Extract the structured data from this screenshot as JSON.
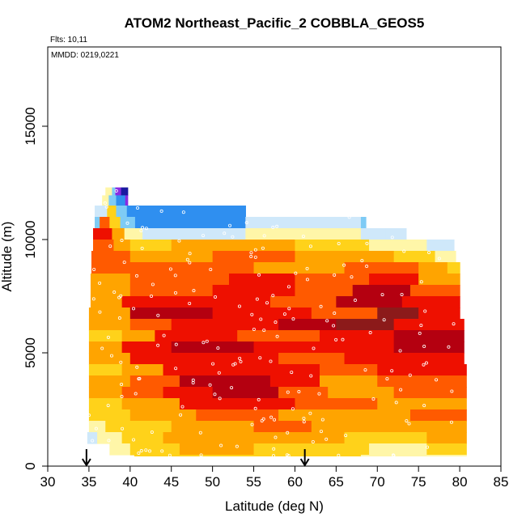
{
  "chart_data": {
    "type": "heatmap",
    "title": "ATOM2 Northeast_Pacific_2 COBBLA_GEOS5",
    "annotations": {
      "flights": "Flts: 10,11",
      "dates": "MMDD: 0219,0221"
    },
    "xlabel": "Latitude (deg N)",
    "ylabel": "Altitude (m)",
    "xlim": [
      30,
      85
    ],
    "ylim": [
      0,
      18500
    ],
    "xticks": [
      "30",
      "35",
      "40",
      "45",
      "50",
      "55",
      "60",
      "65",
      "70",
      "75",
      "80",
      "85"
    ],
    "yticks": [
      "0",
      "5000",
      "10000",
      "15000"
    ],
    "grid": false,
    "colors": {
      "pale_blue": "#cfe8fa",
      "light_blue": "#7ecbf5",
      "blue": "#2f8ff0",
      "purple": "#8a2be2",
      "dark_blue": "#1a1aa0",
      "light_yellow": "#fff6a8",
      "yellow": "#ffd21a",
      "orange": "#ffa400",
      "red_orange": "#ff5a00",
      "red": "#ee1000",
      "dark_red": "#b40010",
      "brown_red": "#8c1a1a"
    },
    "bands": [
      {
        "alt_bottom": 11950,
        "alt_top": 12300,
        "segments": [
          [
            37.0,
            37.8,
            "light_yellow"
          ],
          [
            37.8,
            38.2,
            "light_blue"
          ],
          [
            38.2,
            38.9,
            "purple"
          ],
          [
            38.9,
            39.7,
            "dark_blue"
          ]
        ]
      },
      {
        "alt_bottom": 11500,
        "alt_top": 11950,
        "segments": [
          [
            36.6,
            37.4,
            "light_yellow"
          ],
          [
            37.4,
            38.3,
            "light_blue"
          ],
          [
            38.3,
            39.4,
            "blue"
          ],
          [
            39.4,
            39.7,
            "purple"
          ]
        ]
      },
      {
        "alt_bottom": 11000,
        "alt_top": 11500,
        "segments": [
          [
            35.7,
            37.2,
            "pale_blue"
          ],
          [
            37.2,
            38.3,
            "yellow"
          ],
          [
            38.3,
            39.6,
            "light_blue"
          ],
          [
            39.6,
            54.0,
            "blue"
          ]
        ]
      },
      {
        "alt_bottom": 10500,
        "alt_top": 11000,
        "segments": [
          [
            35.7,
            36.3,
            "light_blue"
          ],
          [
            36.3,
            37.5,
            "red_orange"
          ],
          [
            37.5,
            38.8,
            "yellow"
          ],
          [
            38.8,
            40.6,
            "light_blue"
          ],
          [
            40.6,
            54.0,
            "blue"
          ],
          [
            54.0,
            68.0,
            "pale_blue"
          ],
          [
            68.0,
            68.6,
            "light_blue"
          ]
        ]
      },
      {
        "alt_bottom": 10000,
        "alt_top": 10500,
        "segments": [
          [
            35.5,
            37.8,
            "red"
          ],
          [
            37.8,
            39.3,
            "orange"
          ],
          [
            39.3,
            41.5,
            "light_yellow"
          ],
          [
            41.5,
            46.0,
            "pale_blue"
          ],
          [
            46.0,
            54.0,
            "pale_blue"
          ],
          [
            54.0,
            68.0,
            "light_yellow"
          ],
          [
            68.0,
            71.0,
            "pale_blue"
          ],
          [
            71.0,
            73.5,
            "pale_blue"
          ]
        ]
      },
      {
        "alt_bottom": 9500,
        "alt_top": 10000,
        "segments": [
          [
            35.5,
            38.0,
            "red_orange"
          ],
          [
            38.0,
            40.0,
            "orange"
          ],
          [
            40.0,
            45.0,
            "yellow"
          ],
          [
            45.0,
            60.0,
            "orange"
          ],
          [
            60.0,
            69.0,
            "yellow"
          ],
          [
            69.0,
            76.0,
            "light_yellow"
          ],
          [
            76.0,
            79.3,
            "pale_blue"
          ]
        ]
      },
      {
        "alt_bottom": 9000,
        "alt_top": 9500,
        "segments": [
          [
            35.3,
            40.0,
            "red_orange"
          ],
          [
            40.0,
            50.0,
            "orange"
          ],
          [
            50.0,
            60.0,
            "red_orange"
          ],
          [
            60.0,
            72.0,
            "orange"
          ],
          [
            72.0,
            77.0,
            "yellow"
          ],
          [
            77.0,
            79.5,
            "light_yellow"
          ]
        ]
      },
      {
        "alt_bottom": 8500,
        "alt_top": 9000,
        "segments": [
          [
            35.3,
            42.0,
            "red_orange"
          ],
          [
            42.0,
            55.0,
            "red_orange"
          ],
          [
            55.0,
            66.0,
            "orange"
          ],
          [
            66.0,
            75.0,
            "red_orange"
          ],
          [
            75.0,
            78.5,
            "orange"
          ],
          [
            78.5,
            80.0,
            "yellow"
          ]
        ]
      },
      {
        "alt_bottom": 8000,
        "alt_top": 8500,
        "segments": [
          [
            35.2,
            40.0,
            "orange"
          ],
          [
            40.0,
            52.0,
            "red_orange"
          ],
          [
            52.0,
            60.0,
            "red"
          ],
          [
            60.0,
            69.0,
            "red_orange"
          ],
          [
            69.0,
            75.0,
            "red"
          ],
          [
            75.0,
            80.0,
            "orange"
          ]
        ]
      },
      {
        "alt_bottom": 7500,
        "alt_top": 8000,
        "segments": [
          [
            35.2,
            40.0,
            "orange"
          ],
          [
            40.0,
            50.0,
            "red_orange"
          ],
          [
            50.0,
            60.0,
            "red"
          ],
          [
            60.0,
            67.0,
            "red_orange"
          ],
          [
            67.0,
            74.0,
            "dark_red"
          ],
          [
            74.0,
            80.0,
            "red_orange"
          ]
        ]
      },
      {
        "alt_bottom": 7000,
        "alt_top": 7500,
        "segments": [
          [
            35.2,
            39.0,
            "orange"
          ],
          [
            39.0,
            47.0,
            "red"
          ],
          [
            47.0,
            57.0,
            "red"
          ],
          [
            57.0,
            65.0,
            "red_orange"
          ],
          [
            65.0,
            73.0,
            "dark_red"
          ],
          [
            73.0,
            80.0,
            "red"
          ]
        ]
      },
      {
        "alt_bottom": 6500,
        "alt_top": 7000,
        "segments": [
          [
            35.0,
            40.0,
            "orange"
          ],
          [
            40.0,
            50.0,
            "dark_red"
          ],
          [
            50.0,
            62.0,
            "red"
          ],
          [
            62.0,
            70.0,
            "red_orange"
          ],
          [
            70.0,
            75.0,
            "brown_red"
          ],
          [
            75.0,
            80.0,
            "red"
          ]
        ]
      },
      {
        "alt_bottom": 6000,
        "alt_top": 6500,
        "segments": [
          [
            35.0,
            40.0,
            "orange"
          ],
          [
            40.0,
            45.0,
            "red_orange"
          ],
          [
            45.0,
            58.0,
            "red"
          ],
          [
            58.0,
            65.0,
            "dark_red"
          ],
          [
            65.0,
            72.0,
            "brown_red"
          ],
          [
            72.0,
            80.5,
            "red"
          ]
        ]
      },
      {
        "alt_bottom": 5500,
        "alt_top": 6000,
        "segments": [
          [
            35.0,
            39.0,
            "yellow"
          ],
          [
            39.0,
            43.0,
            "orange"
          ],
          [
            43.0,
            53.0,
            "red"
          ],
          [
            53.0,
            63.0,
            "red_orange"
          ],
          [
            63.0,
            72.0,
            "red"
          ],
          [
            72.0,
            80.5,
            "dark_red"
          ]
        ]
      },
      {
        "alt_bottom": 5000,
        "alt_top": 5500,
        "segments": [
          [
            35.0,
            39.0,
            "orange"
          ],
          [
            39.0,
            45.0,
            "red"
          ],
          [
            45.0,
            55.0,
            "dark_red"
          ],
          [
            55.0,
            64.0,
            "red"
          ],
          [
            64.0,
            72.0,
            "red"
          ],
          [
            72.0,
            80.5,
            "dark_red"
          ]
        ]
      },
      {
        "alt_bottom": 4500,
        "alt_top": 5000,
        "segments": [
          [
            35.0,
            40.0,
            "orange"
          ],
          [
            40.0,
            47.0,
            "red"
          ],
          [
            47.0,
            58.0,
            "red"
          ],
          [
            58.0,
            66.0,
            "red_orange"
          ],
          [
            66.0,
            74.0,
            "red"
          ],
          [
            74.0,
            80.5,
            "red"
          ]
        ]
      },
      {
        "alt_bottom": 4000,
        "alt_top": 4500,
        "segments": [
          [
            35.0,
            39.0,
            "yellow"
          ],
          [
            39.0,
            44.0,
            "orange"
          ],
          [
            44.0,
            56.0,
            "red"
          ],
          [
            56.0,
            63.0,
            "red"
          ],
          [
            63.0,
            70.0,
            "red_orange"
          ],
          [
            70.0,
            80.8,
            "red"
          ]
        ]
      },
      {
        "alt_bottom": 3500,
        "alt_top": 4000,
        "segments": [
          [
            35.0,
            40.0,
            "orange"
          ],
          [
            40.0,
            46.0,
            "red_orange"
          ],
          [
            46.0,
            57.0,
            "dark_red"
          ],
          [
            57.0,
            63.0,
            "red"
          ],
          [
            63.0,
            70.0,
            "orange"
          ],
          [
            70.0,
            80.8,
            "red_orange"
          ]
        ]
      },
      {
        "alt_bottom": 3000,
        "alt_top": 3500,
        "segments": [
          [
            35.0,
            39.0,
            "orange"
          ],
          [
            39.0,
            44.0,
            "red_orange"
          ],
          [
            44.0,
            50.0,
            "red"
          ],
          [
            50.0,
            58.0,
            "dark_red"
          ],
          [
            58.0,
            64.0,
            "red_orange"
          ],
          [
            64.0,
            72.0,
            "orange"
          ],
          [
            72.0,
            80.8,
            "red_orange"
          ]
        ]
      },
      {
        "alt_bottom": 2500,
        "alt_top": 3000,
        "segments": [
          [
            35.0,
            39.0,
            "yellow"
          ],
          [
            39.0,
            46.0,
            "orange"
          ],
          [
            46.0,
            60.0,
            "red"
          ],
          [
            60.0,
            70.0,
            "red_orange"
          ],
          [
            70.0,
            80.8,
            "orange"
          ]
        ]
      },
      {
        "alt_bottom": 2000,
        "alt_top": 2500,
        "segments": [
          [
            35.0,
            40.0,
            "yellow"
          ],
          [
            40.0,
            48.0,
            "orange"
          ],
          [
            48.0,
            58.0,
            "red_orange"
          ],
          [
            58.0,
            66.0,
            "orange"
          ],
          [
            66.0,
            74.0,
            "orange"
          ],
          [
            74.0,
            80.8,
            "red_orange"
          ]
        ]
      },
      {
        "alt_bottom": 1500,
        "alt_top": 2000,
        "segments": [
          [
            35.0,
            37.0,
            "light_yellow"
          ],
          [
            37.0,
            45.0,
            "yellow"
          ],
          [
            45.0,
            55.0,
            "orange"
          ],
          [
            55.0,
            62.0,
            "red_orange"
          ],
          [
            62.0,
            72.0,
            "orange"
          ],
          [
            72.0,
            80.8,
            "orange"
          ]
        ]
      },
      {
        "alt_bottom": 1000,
        "alt_top": 1500,
        "segments": [
          [
            34.8,
            36.0,
            "pale_blue"
          ],
          [
            36.0,
            39.0,
            "light_yellow"
          ],
          [
            39.0,
            44.0,
            "yellow"
          ],
          [
            44.0,
            56.0,
            "orange"
          ],
          [
            56.0,
            66.0,
            "orange"
          ],
          [
            66.0,
            76.0,
            "yellow"
          ],
          [
            76.0,
            80.8,
            "orange"
          ]
        ]
      },
      {
        "alt_bottom": 500,
        "alt_top": 1000,
        "segments": [
          [
            37.5,
            40.0,
            "light_yellow"
          ],
          [
            40.0,
            46.0,
            "yellow"
          ],
          [
            46.0,
            55.0,
            "orange"
          ],
          [
            55.0,
            65.0,
            "yellow"
          ],
          [
            65.0,
            69.0,
            "yellow"
          ],
          [
            69.0,
            71.0,
            "light_yellow"
          ],
          [
            71.0,
            76.0,
            "light_yellow"
          ],
          [
            76.0,
            80.8,
            "yellow"
          ]
        ]
      },
      {
        "alt_bottom": 450,
        "alt_top": 500,
        "segments": [
          [
            40.5,
            68.0,
            "yellow"
          ],
          [
            68.0,
            70.5,
            "light_yellow"
          ],
          [
            70.5,
            80.8,
            "light_yellow"
          ]
        ]
      }
    ],
    "markers": [
      {
        "lat": 34.7,
        "alt": 0,
        "symbol": "arrow-down"
      },
      {
        "lat": 61.2,
        "alt": 0,
        "symbol": "arrow-down"
      }
    ]
  }
}
